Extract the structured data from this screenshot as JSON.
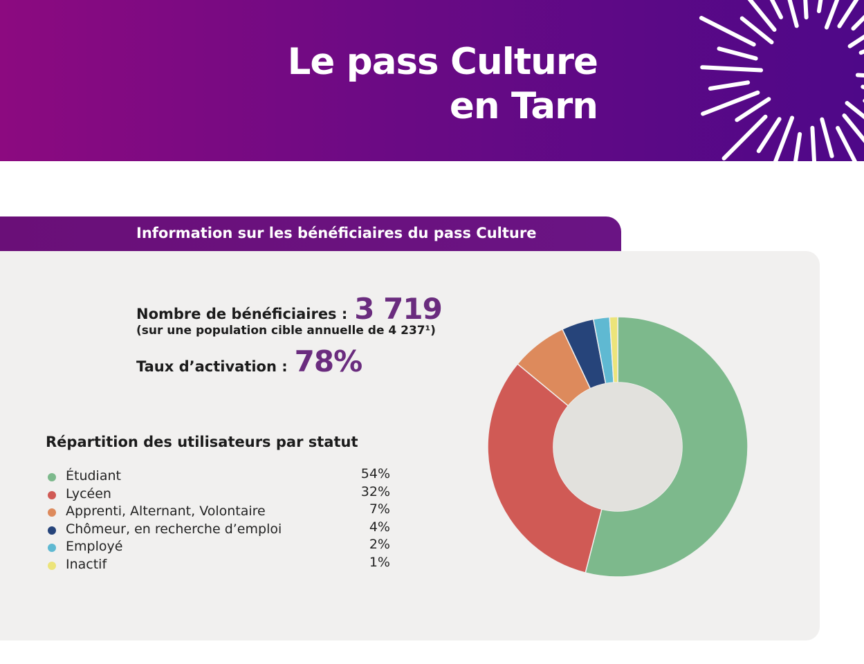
{
  "header": {
    "title_line1": "Le pass Culture",
    "title_line2": "en Tarn"
  },
  "section": {
    "tab_label": "Information sur les bénéficiaires du pass Culture"
  },
  "stats": {
    "beneficiaries_label": "Nombre de bénéficiaires :",
    "beneficiaries_value": "3 719",
    "population_note": "(sur une population cible annuelle de 4 237¹)",
    "activation_label": "Taux d’activation :",
    "activation_value": "78%"
  },
  "chart_data": {
    "type": "pie",
    "title": "Répartition des utilisateurs par statut",
    "donut": true,
    "categories": [
      "Étudiant",
      "Lycéen",
      "Apprenti, Alternant, Volontaire",
      "Chômeur, en recherche d’emploi",
      "Employé",
      "Inactif"
    ],
    "values": [
      54,
      32,
      7,
      4,
      2,
      1
    ],
    "labels": [
      "54%",
      "32%",
      "7%",
      "4%",
      "2%",
      "1%"
    ],
    "colors": [
      "#7db98c",
      "#d05a55",
      "#dd8a5c",
      "#26447a",
      "#5fb9d2",
      "#ece47a"
    ],
    "legend": "left"
  }
}
